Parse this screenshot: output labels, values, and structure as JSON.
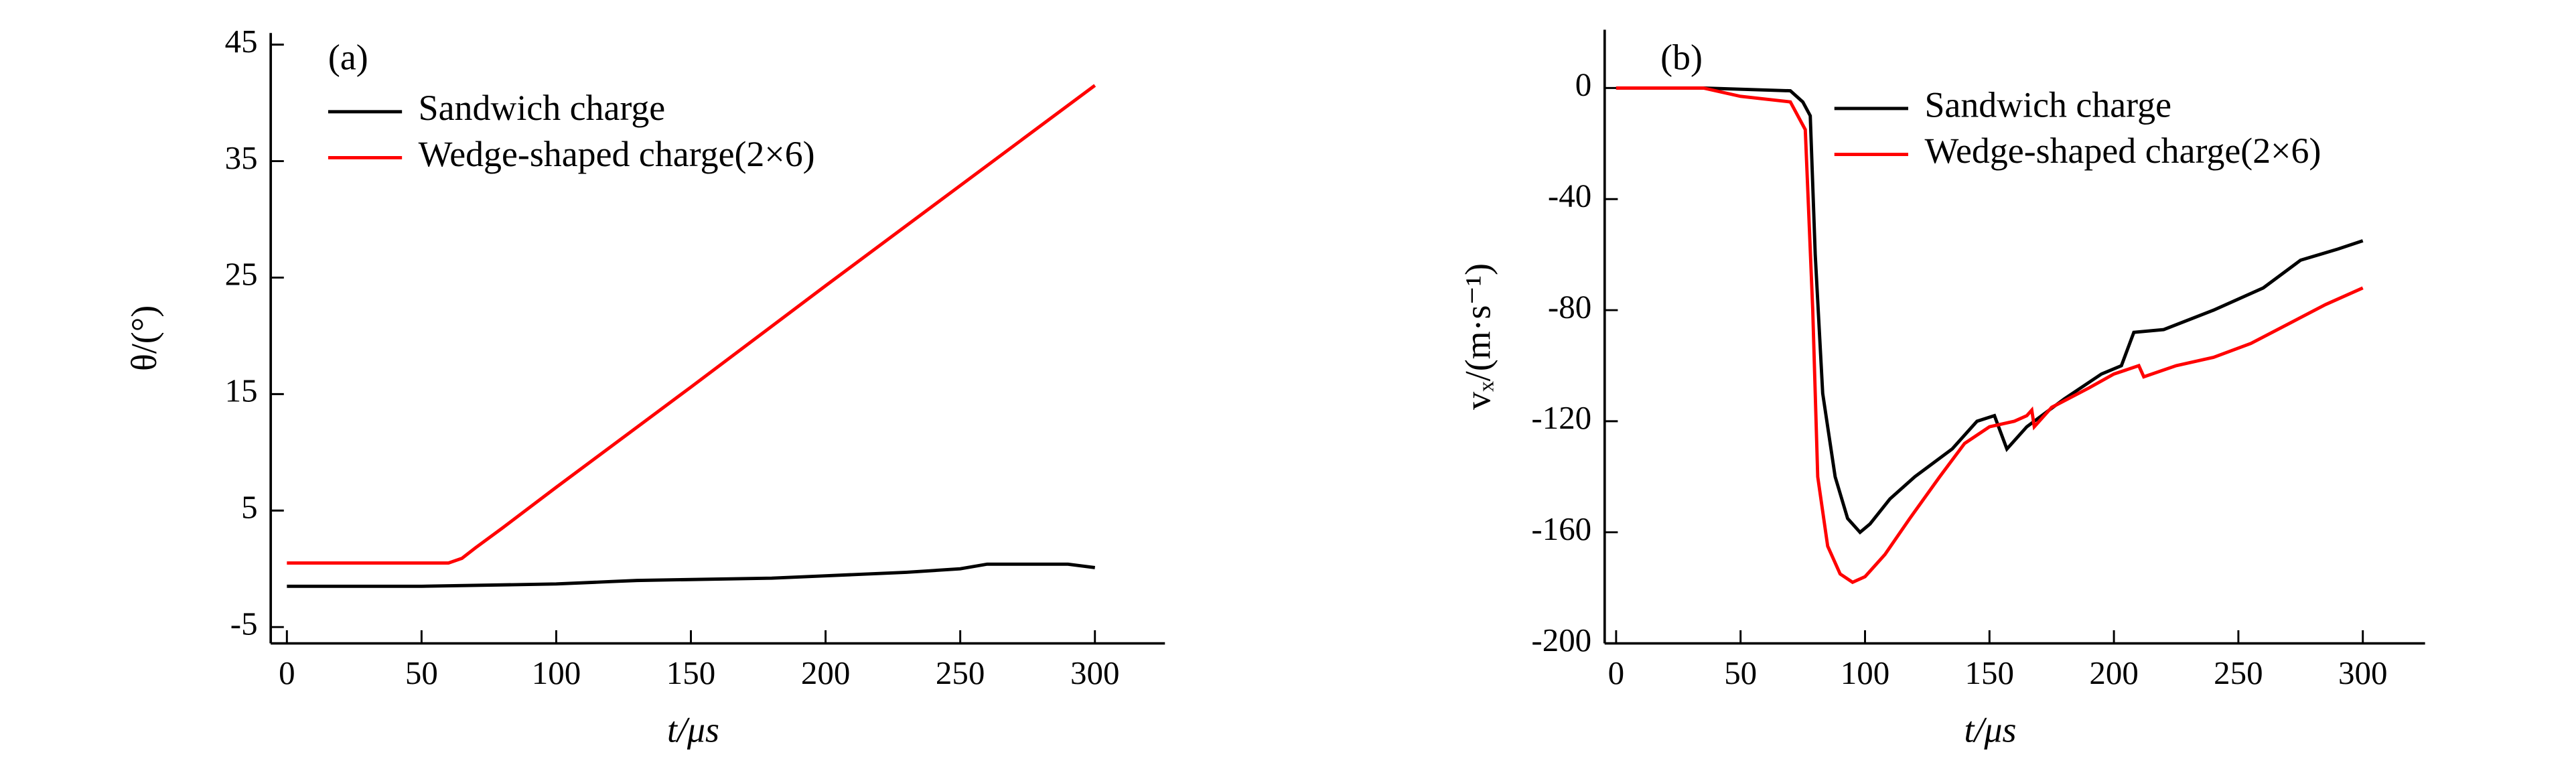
{
  "chart_data": [
    {
      "type": "line",
      "annotation": "(a)",
      "x_label": "t/μs",
      "y_label": "θ/(°)",
      "xlim": [
        -6,
        326
      ],
      "xticks": [
        0,
        50,
        100,
        150,
        200,
        250,
        300
      ],
      "ylim": [
        -6.4,
        46
      ],
      "yticks": [
        -5,
        5,
        15,
        25,
        35,
        45
      ],
      "series": [
        {
          "name": "Sandwich charge",
          "color": "#000000",
          "x": [
            0,
            50,
            100,
            120,
            130,
            180,
            200,
            230,
            250,
            260,
            290,
            300
          ],
          "values": [
            -1.5,
            -1.5,
            -1.3,
            -1.1,
            -1.0,
            -0.8,
            -0.6,
            -0.3,
            0.0,
            0.4,
            0.4,
            0.1
          ]
        },
        {
          "name": "Wedge-shaped charge(2×6)",
          "color": "#ff0000",
          "x": [
            0,
            60,
            65,
            70,
            80,
            100,
            150,
            200,
            250,
            300
          ],
          "values": [
            0.5,
            0.5,
            0.9,
            1.8,
            3.5,
            7.0,
            15.6,
            24.3,
            32.9,
            41.5
          ]
        }
      ]
    },
    {
      "type": "line",
      "annotation": "(b)",
      "x_label": "t/μs",
      "y_label": "vₓ/(m·s⁻¹)",
      "xlim": [
        -4.6,
        325
      ],
      "xticks": [
        0,
        50,
        100,
        150,
        200,
        250,
        300
      ],
      "ylim": [
        -200,
        21
      ],
      "yticks": [
        0,
        -40,
        -80,
        -120,
        -160,
        -200
      ],
      "series": [
        {
          "name": "Sandwich charge",
          "color": "#000000",
          "x": [
            0,
            35,
            70,
            75,
            78,
            80,
            83,
            88,
            93,
            98,
            102,
            110,
            120,
            135,
            145,
            152,
            157,
            165,
            180,
            195,
            203,
            208,
            220,
            240,
            260,
            275,
            290,
            300
          ],
          "values": [
            0,
            0,
            -1,
            -5,
            -10,
            -60,
            -110,
            -140,
            -155,
            -160,
            -157,
            -148,
            -140,
            -130,
            -120,
            -118,
            -130,
            -122,
            -112,
            -103,
            -100,
            -88,
            -87,
            -80,
            -72,
            -62,
            -58,
            -55
          ]
        },
        {
          "name": "Wedge-shaped charge(2×6)",
          "color": "#ff0000",
          "x": [
            0,
            35,
            50,
            70,
            76,
            79,
            81,
            85,
            90,
            95,
            100,
            108,
            118,
            130,
            140,
            150,
            160,
            165,
            167,
            168,
            175,
            190,
            200,
            210,
            212,
            225,
            240,
            255,
            270,
            285,
            300
          ],
          "values": [
            0,
            0,
            -3,
            -5,
            -15,
            -80,
            -140,
            -165,
            -175,
            -178,
            -176,
            -168,
            -155,
            -140,
            -128,
            -122,
            -120,
            -118,
            -116,
            -122,
            -115,
            -108,
            -103,
            -100,
            -104,
            -100,
            -97,
            -92,
            -85,
            -78,
            -72
          ]
        }
      ]
    }
  ]
}
